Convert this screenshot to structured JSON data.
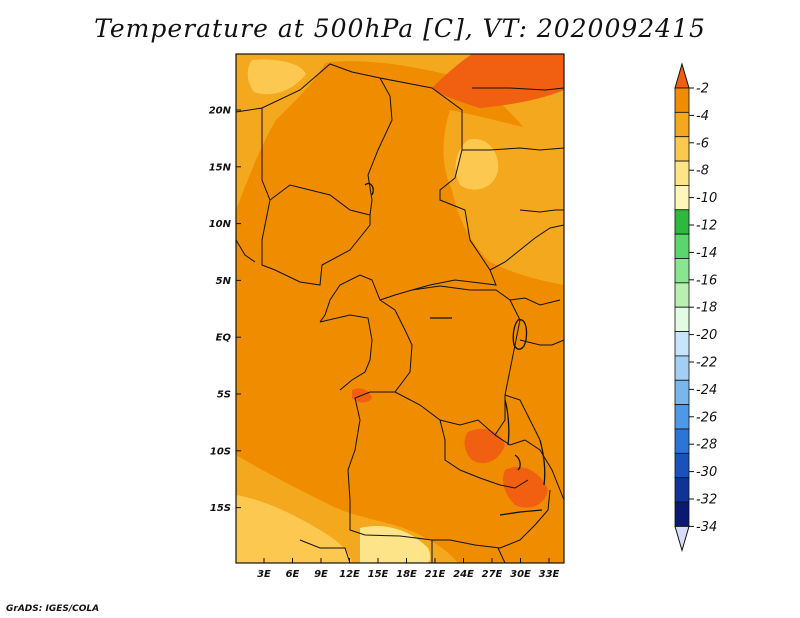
{
  "title": "Temperature at 500hPa [C], VT: 2020092415",
  "credit": "GrADS: IGES/COLA",
  "lat_labels": [
    "20N",
    "15N",
    "10N",
    "5N",
    "EQ",
    "5S",
    "10S",
    "15S"
  ],
  "lon_labels": [
    "3E",
    "6E",
    "9E",
    "12E",
    "15E",
    "18E",
    "21E",
    "24E",
    "27E",
    "30E",
    "33E"
  ],
  "colorbar": {
    "labels": [
      "-2",
      "-4",
      "-6",
      "-8",
      "-10",
      "-12",
      "-14",
      "-16",
      "-18",
      "-20",
      "-22",
      "-24",
      "-26",
      "-28",
      "-30",
      "-32",
      "-34"
    ],
    "colors": [
      "#f06010",
      "#f08c00",
      "#f4a81e",
      "#fcc850",
      "#fde488",
      "#fef6b8",
      "#2fb83e",
      "#5cd66a",
      "#8ae68e",
      "#b8f0b0",
      "#e2fce4",
      "#c6e4fa",
      "#a2d0f4",
      "#78b6ee",
      "#4e98e6",
      "#2c74d6",
      "#1a52bc",
      "#103496",
      "#0a1a70",
      "#d8dcf8"
    ]
  }
}
